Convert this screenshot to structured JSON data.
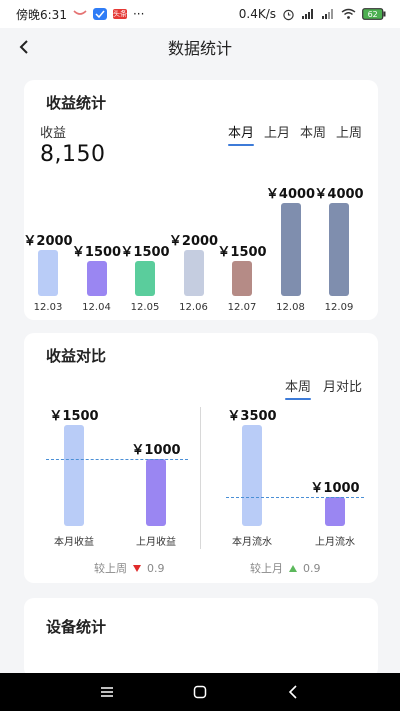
{
  "status_bar": {
    "time": "傍晚6:31",
    "red_badge_text": "头条",
    "more_dots": "···",
    "net_speed": "0.4K/s",
    "battery": "62"
  },
  "header": {
    "title": "数据统计"
  },
  "income_card": {
    "title": "收益统计",
    "label": "收益",
    "total": "8,150",
    "tabs": [
      "本月",
      "上月",
      "本周",
      "上周"
    ],
    "active_tab": "本月",
    "chart_data": {
      "type": "bar",
      "categories": [
        "12.03",
        "12.04",
        "12.05",
        "12.06",
        "12.07",
        "12.08",
        "12.09"
      ],
      "values": [
        2000,
        1500,
        1500,
        2000,
        1500,
        4000,
        4000
      ],
      "value_labels": [
        "￥2000",
        "￥1500",
        "￥1500",
        "￥2000",
        "￥1500",
        "￥4000",
        "￥4000"
      ],
      "colors": [
        "#b9ccf7",
        "#9a86f2",
        "#5acd9c",
        "#c5cde0",
        "#b58b86",
        "#7f8eae",
        "#7f8eae"
      ]
    }
  },
  "compare_card": {
    "title": "收益对比",
    "tabs": [
      "本周",
      "月对比"
    ],
    "active_tab": "本周",
    "chart_data": [
      {
        "type": "bar",
        "categories": [
          "本月收益",
          "上月收益"
        ],
        "values": [
          1500,
          1000
        ],
        "value_labels": [
          "￥1500",
          "￥1000"
        ],
        "colors": [
          "#b9ccf7",
          "#9a86f2"
        ],
        "delta_label": "较上周",
        "delta_direction": "down",
        "delta_value": "0.9"
      },
      {
        "type": "bar",
        "categories": [
          "本月流水",
          "上月流水"
        ],
        "values": [
          3500,
          1000
        ],
        "value_labels": [
          "￥3500",
          "￥1000"
        ],
        "colors": [
          "#b9ccf7",
          "#9a86f2"
        ],
        "delta_label": "较上月",
        "delta_direction": "up",
        "delta_value": "0.9"
      }
    ]
  },
  "device_card": {
    "title": "设备统计"
  },
  "colors": {
    "accent": "#3d7bd8",
    "dashed": "#4a8fd6",
    "down": "#e02b2b",
    "up": "#5cb85c"
  }
}
